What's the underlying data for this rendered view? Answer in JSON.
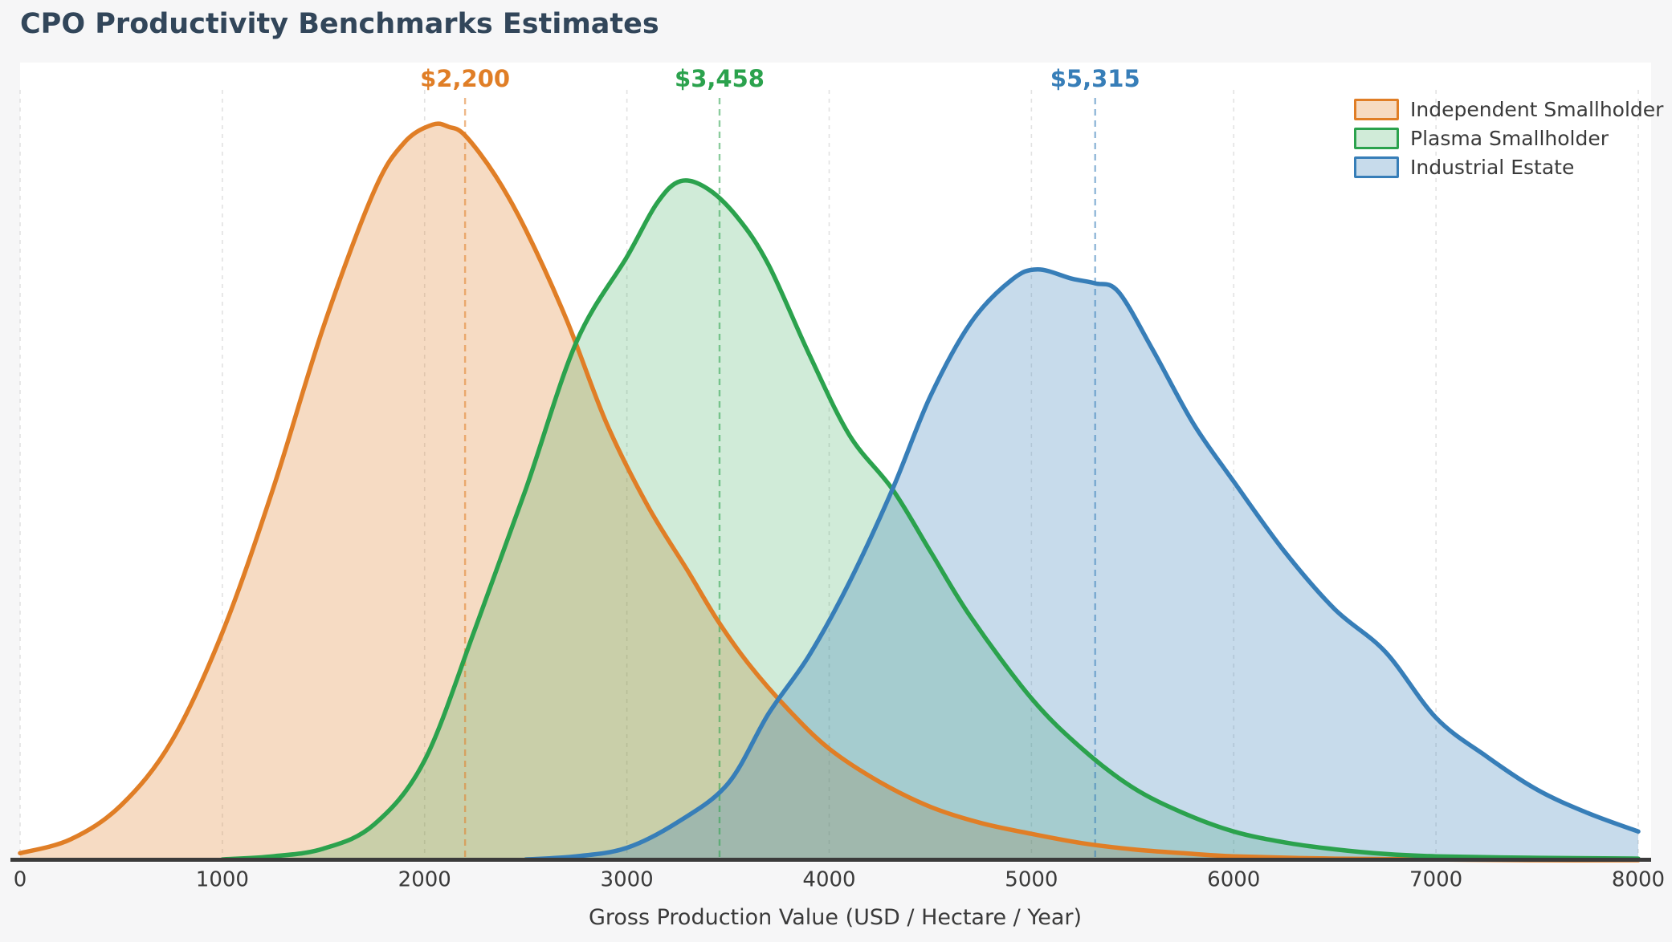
{
  "chart_data": {
    "type": "area",
    "subtype": "kde-density",
    "title": "CPO Productivity Benchmarks Estimates",
    "xlabel": "Gross Production Value (USD / Hectare / Year)",
    "ylabel": "",
    "xlim": [
      0,
      8000
    ],
    "ylim": [
      0,
      1.0
    ],
    "y_unit": "relative density (fraction of plot height)",
    "x_ticks": [
      0,
      1000,
      2000,
      3000,
      4000,
      5000,
      6000,
      7000,
      8000
    ],
    "grid": "vertical dashed gridlines at each x tick",
    "legend_position": "upper-right",
    "series": [
      {
        "name": "Independent Smallholder",
        "color": "#e07e26",
        "fill_alpha": 0.28,
        "annotation_label": "$2,200",
        "annotation_value": 2200,
        "points": [
          [
            0,
            0.01
          ],
          [
            250,
            0.028
          ],
          [
            500,
            0.072
          ],
          [
            750,
            0.155
          ],
          [
            1000,
            0.295
          ],
          [
            1250,
            0.48
          ],
          [
            1500,
            0.69
          ],
          [
            1750,
            0.865
          ],
          [
            1900,
            0.928
          ],
          [
            2040,
            0.951
          ],
          [
            2120,
            0.948
          ],
          [
            2200,
            0.937
          ],
          [
            2350,
            0.885
          ],
          [
            2500,
            0.815
          ],
          [
            2700,
            0.7
          ],
          [
            2900,
            0.565
          ],
          [
            3100,
            0.46
          ],
          [
            3300,
            0.375
          ],
          [
            3450,
            0.31
          ],
          [
            3600,
            0.255
          ],
          [
            3800,
            0.195
          ],
          [
            4000,
            0.145
          ],
          [
            4250,
            0.102
          ],
          [
            4500,
            0.07
          ],
          [
            4750,
            0.049
          ],
          [
            5000,
            0.035
          ],
          [
            5250,
            0.023
          ],
          [
            5500,
            0.015
          ],
          [
            5750,
            0.01
          ],
          [
            6000,
            0.006
          ],
          [
            6500,
            0.003
          ],
          [
            7000,
            0.002
          ],
          [
            7500,
            0.001
          ],
          [
            8000,
            0.001
          ]
        ]
      },
      {
        "name": "Plasma Smallholder",
        "color": "#2ba24d",
        "fill_alpha": 0.22,
        "annotation_label": "$3,458",
        "annotation_value": 3458,
        "points": [
          [
            1000,
            0.002
          ],
          [
            1250,
            0.006
          ],
          [
            1500,
            0.016
          ],
          [
            1750,
            0.047
          ],
          [
            2000,
            0.13
          ],
          [
            2250,
            0.3
          ],
          [
            2500,
            0.48
          ],
          [
            2750,
            0.67
          ],
          [
            3000,
            0.78
          ],
          [
            3150,
            0.85
          ],
          [
            3266,
            0.878
          ],
          [
            3400,
            0.868
          ],
          [
            3550,
            0.83
          ],
          [
            3700,
            0.77
          ],
          [
            3900,
            0.655
          ],
          [
            4100,
            0.55
          ],
          [
            4313,
            0.48
          ],
          [
            4500,
            0.4
          ],
          [
            4700,
            0.315
          ],
          [
            5000,
            0.21
          ],
          [
            5250,
            0.145
          ],
          [
            5500,
            0.095
          ],
          [
            5750,
            0.062
          ],
          [
            6000,
            0.038
          ],
          [
            6250,
            0.024
          ],
          [
            6500,
            0.015
          ],
          [
            6750,
            0.009
          ],
          [
            7000,
            0.006
          ],
          [
            7500,
            0.004
          ],
          [
            8000,
            0.003
          ]
        ]
      },
      {
        "name": "Industrial Estate",
        "color": "#377eb8",
        "fill_alpha": 0.28,
        "annotation_label": "$5,315",
        "annotation_value": 5315,
        "points": [
          [
            2500,
            0.002
          ],
          [
            2750,
            0.006
          ],
          [
            3000,
            0.017
          ],
          [
            3250,
            0.05
          ],
          [
            3500,
            0.1
          ],
          [
            3700,
            0.19
          ],
          [
            3900,
            0.265
          ],
          [
            4100,
            0.36
          ],
          [
            4313,
            0.48
          ],
          [
            4500,
            0.6
          ],
          [
            4700,
            0.695
          ],
          [
            4900,
            0.75
          ],
          [
            5030,
            0.764
          ],
          [
            5200,
            0.752
          ],
          [
            5315,
            0.746
          ],
          [
            5430,
            0.735
          ],
          [
            5600,
            0.66
          ],
          [
            5800,
            0.565
          ],
          [
            6000,
            0.49
          ],
          [
            6250,
            0.4
          ],
          [
            6500,
            0.325
          ],
          [
            6750,
            0.27
          ],
          [
            7000,
            0.185
          ],
          [
            7250,
            0.135
          ],
          [
            7500,
            0.092
          ],
          [
            7750,
            0.062
          ],
          [
            8000,
            0.038
          ]
        ]
      }
    ],
    "colors": {
      "figure_background": "#f6f6f7",
      "plot_background": "#ffffff",
      "grid_color": "#e2e2e2",
      "axis_line_color": "#3b3b3b",
      "text_color": "#3a3a3a",
      "title_color": "#32465a"
    }
  }
}
